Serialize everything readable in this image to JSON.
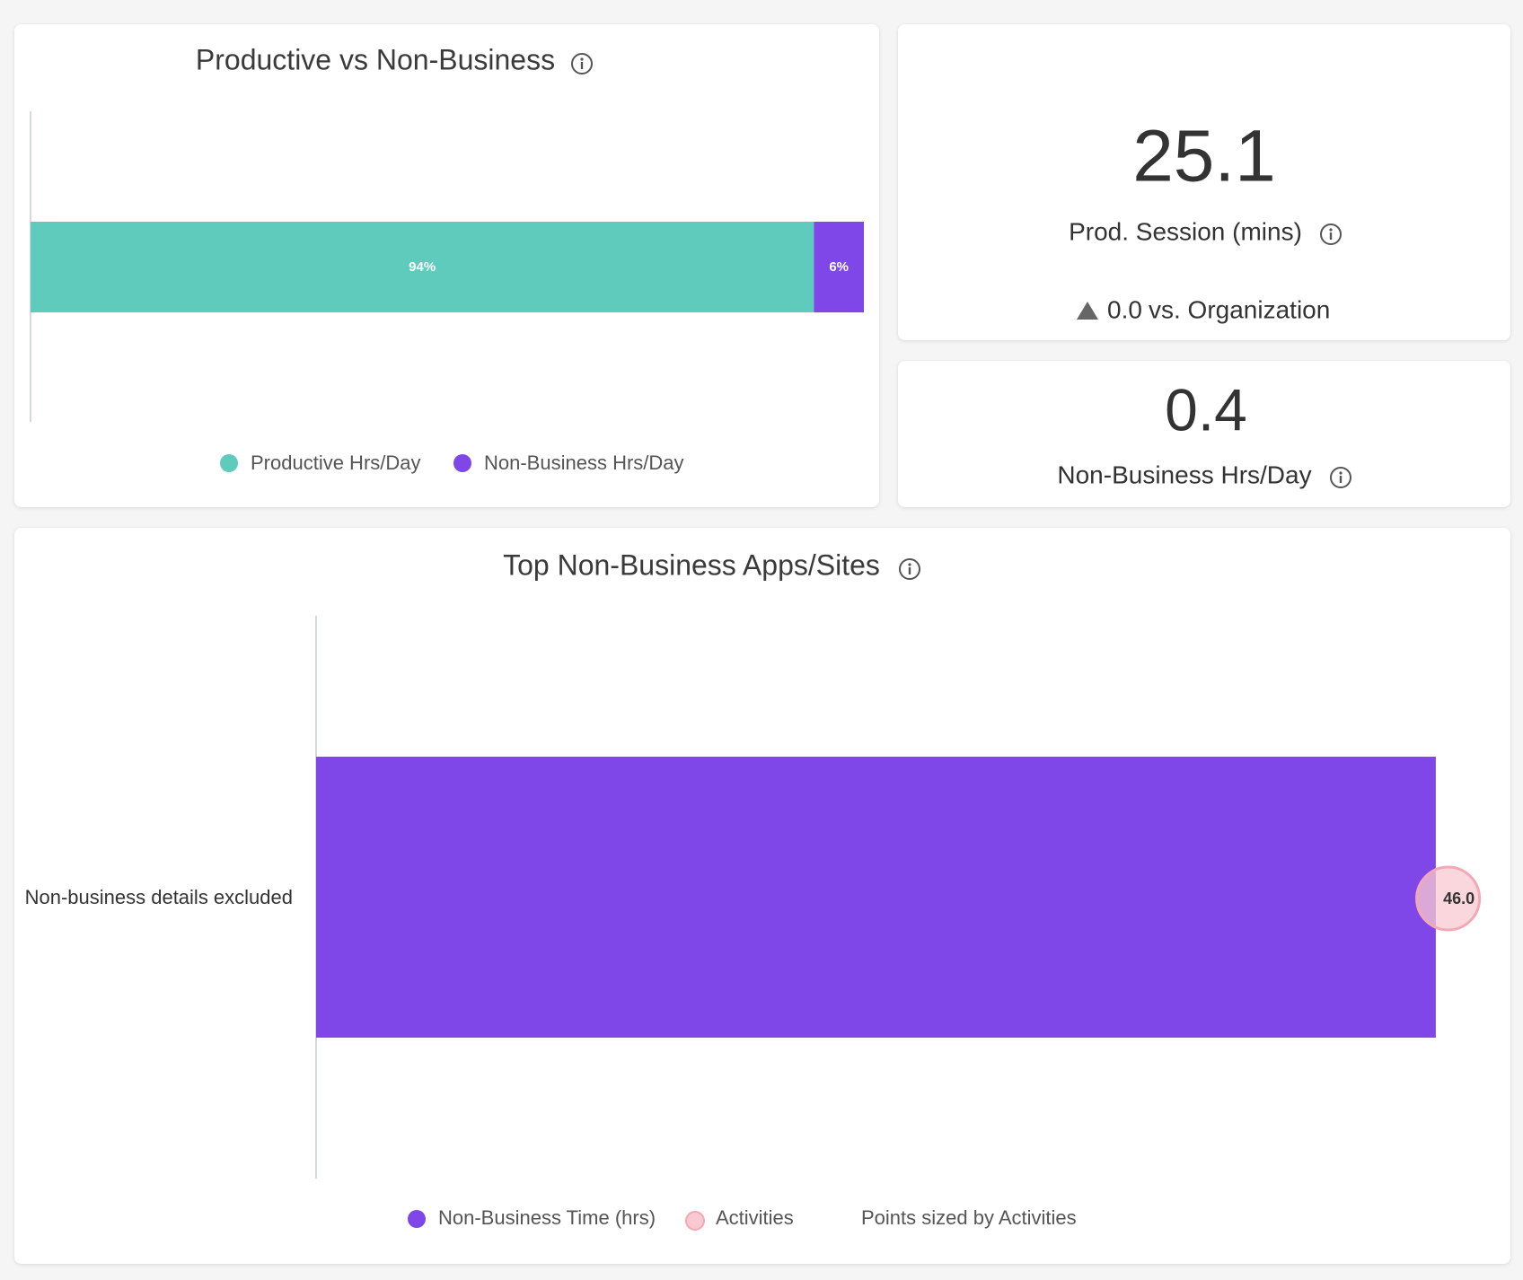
{
  "cards": [
    {
      "chart_data": {
        "type": "stacked-bar",
        "title": "Productive vs Non-Business",
        "series": [
          {
            "name": "Productive Hrs/Day",
            "color": "#5ecbbd",
            "values": [
              94
            ],
            "value_labels": [
              "94%"
            ]
          },
          {
            "name": "Non-Business Hrs/Day",
            "color": "#7f47e8",
            "values": [
              6
            ],
            "value_labels": [
              "6%"
            ]
          }
        ],
        "xlim": [
          0,
          100
        ]
      }
    },
    {
      "kpi": {
        "value": 25.1,
        "label": "Prod. Session (mins)",
        "delta": "0.0",
        "delta_text": "vs. Organization"
      }
    },
    {
      "kpi": {
        "value": 0.4,
        "label": "Non-Business Hrs/Day"
      }
    },
    {
      "chart_data": {
        "type": "bar-bubble",
        "title": "Top Non-Business Apps/Sites",
        "categories": [
          "Non-business details excluded"
        ],
        "series": [
          {
            "name": "Non-Business Time (hrs)",
            "color": "#7f47e8",
            "values": [
              45.5
            ]
          },
          {
            "name": "Activities",
            "color": "#f8c9d0",
            "values": [
              46
            ],
            "value_labels": [
              "46.0"
            ]
          }
        ],
        "note": "Points sized by Activities",
        "xlim": [
          0,
          47
        ]
      }
    }
  ]
}
